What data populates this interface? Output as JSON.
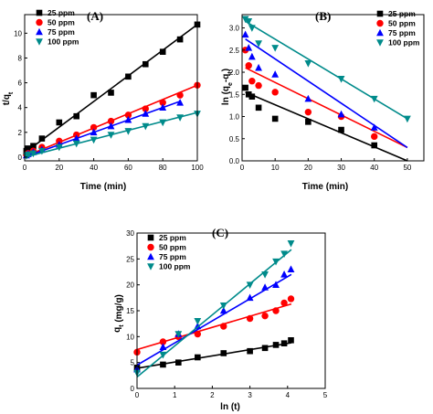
{
  "chart_data": [
    {
      "type": "scatter",
      "panel_label": "(A)",
      "xlabel": "Time (min)",
      "ylabel_main": "t/q",
      "ylabel_sub": "t",
      "xlim": [
        0,
        100
      ],
      "ylim": [
        -0.3,
        11.5
      ],
      "xticks": [
        "0",
        "20",
        "40",
        "60",
        "80",
        "100"
      ],
      "yticks": [
        "0",
        "2",
        "4",
        "6",
        "8",
        "10"
      ],
      "legend": "top-left",
      "series": [
        {
          "name": "25 ppm",
          "color": "#000000",
          "marker": "square",
          "x": [
            1,
            2,
            5,
            10,
            20,
            30,
            40,
            50,
            60,
            70,
            80,
            90,
            100
          ],
          "y": [
            0.5,
            0.7,
            0.9,
            1.5,
            2.8,
            3.3,
            5.0,
            5.2,
            6.5,
            7.5,
            8.5,
            9.5,
            10.7
          ],
          "fit": [
            [
              0,
              0.35
            ],
            [
              100,
              10.7
            ]
          ]
        },
        {
          "name": "50 ppm",
          "color": "#ff0000",
          "marker": "circle",
          "x": [
            1,
            2,
            5,
            10,
            20,
            30,
            40,
            50,
            60,
            70,
            80,
            90,
            100
          ],
          "y": [
            0.2,
            0.3,
            0.5,
            0.8,
            1.3,
            1.8,
            2.4,
            2.9,
            3.4,
            3.9,
            4.4,
            5.0,
            5.8
          ],
          "fit": [
            [
              0,
              0.05
            ],
            [
              100,
              5.8
            ]
          ]
        },
        {
          "name": "75 ppm",
          "color": "#0000ff",
          "marker": "triangle-up",
          "x": [
            1,
            2,
            5,
            10,
            20,
            30,
            40,
            50,
            60,
            70,
            80,
            90
          ],
          "y": [
            0.15,
            0.25,
            0.4,
            0.6,
            1.0,
            1.5,
            2.0,
            2.5,
            3.0,
            3.5,
            4.0,
            4.4
          ],
          "fit": [
            [
              0,
              0.0
            ],
            [
              90,
              4.5
            ]
          ]
        },
        {
          "name": "100 ppm",
          "color": "#008b8b",
          "marker": "triangle-down",
          "x": [
            1,
            2,
            5,
            10,
            20,
            30,
            40,
            50,
            60,
            70,
            80,
            90,
            100
          ],
          "y": [
            0.1,
            0.2,
            0.3,
            0.5,
            0.8,
            1.1,
            1.4,
            1.8,
            2.1,
            2.5,
            2.8,
            3.2,
            3.5
          ],
          "fit": [
            [
              0,
              0.0
            ],
            [
              100,
              3.6
            ]
          ]
        }
      ]
    },
    {
      "type": "scatter",
      "panel_label": "(B)",
      "xlabel": "Time (min)",
      "ylabel_main": "ln (q",
      "ylabel_sub1": "e",
      "ylabel_mid": "-q",
      "ylabel_sub2": "t",
      "ylabel_end": ")",
      "xlim": [
        0,
        55
      ],
      "ylim": [
        0,
        3.3
      ],
      "xticks": [
        "0",
        "10",
        "20",
        "30",
        "40",
        "50"
      ],
      "yticks": [
        "0.0",
        "0.5",
        "1.0",
        "1.5",
        "2.0",
        "2.5",
        "3.0"
      ],
      "legend": "top-right",
      "series": [
        {
          "name": "25 ppm",
          "color": "#000000",
          "marker": "square",
          "x": [
            1,
            2,
            3,
            5,
            10,
            20,
            30,
            40
          ],
          "y": [
            1.65,
            1.5,
            1.45,
            1.2,
            0.95,
            0.88,
            0.7,
            0.35
          ],
          "fit": [
            [
              1,
              1.55
            ],
            [
              50,
              0.0
            ]
          ]
        },
        {
          "name": "50 ppm",
          "color": "#ff0000",
          "marker": "circle",
          "x": [
            1,
            2,
            3,
            5,
            10,
            20,
            30,
            40
          ],
          "y": [
            2.5,
            2.15,
            1.8,
            1.7,
            1.55,
            1.1,
            1.0,
            0.55
          ],
          "fit": [
            [
              1,
              2.1
            ],
            [
              50,
              0.3
            ]
          ]
        },
        {
          "name": "75 ppm",
          "color": "#0000ff",
          "marker": "triangle-up",
          "x": [
            1,
            2,
            3,
            5,
            10,
            20,
            30,
            40
          ],
          "y": [
            2.85,
            2.55,
            2.35,
            2.1,
            1.95,
            1.4,
            1.05,
            0.75
          ],
          "fit": [
            [
              1,
              2.75
            ],
            [
              50,
              0.3
            ]
          ]
        },
        {
          "name": "100 ppm",
          "color": "#008b8b",
          "marker": "triangle-down",
          "x": [
            1,
            2,
            3,
            5,
            10,
            20,
            30,
            40,
            50
          ],
          "y": [
            3.2,
            3.15,
            3.0,
            2.65,
            2.55,
            2.2,
            1.85,
            1.4,
            0.95
          ],
          "fit": [
            [
              1,
              3.15
            ],
            [
              50,
              0.95
            ]
          ]
        }
      ]
    },
    {
      "type": "scatter",
      "panel_label": "(C)",
      "xlabel": "ln (t)",
      "ylabel_main": "q",
      "ylabel_sub": "t",
      "ylabel_end": " (mg/g)",
      "xlim": [
        0,
        5
      ],
      "ylim": [
        0,
        30
      ],
      "xticks": [
        "0",
        "1",
        "2",
        "3",
        "4",
        "5"
      ],
      "yticks": [
        "0",
        "5",
        "10",
        "15",
        "20",
        "25",
        "30"
      ],
      "legend": "top-left",
      "series": [
        {
          "name": "25 ppm",
          "color": "#000000",
          "marker": "square",
          "x": [
            0,
            0.69,
            1.1,
            1.61,
            2.3,
            3.0,
            3.4,
            3.69,
            3.91,
            4.09
          ],
          "y": [
            4.0,
            4.6,
            5.0,
            6.0,
            6.8,
            7.2,
            7.8,
            8.4,
            8.7,
            9.3
          ],
          "fit": [
            [
              0,
              3.9
            ],
            [
              4.1,
              8.8
            ]
          ]
        },
        {
          "name": "50 ppm",
          "color": "#ff0000",
          "marker": "circle",
          "x": [
            0,
            0.69,
            1.1,
            1.61,
            2.3,
            3.0,
            3.4,
            3.69,
            3.91,
            4.09
          ],
          "y": [
            7.0,
            9.0,
            10.0,
            10.5,
            12.0,
            13.5,
            14.0,
            15.0,
            16.5,
            17.3
          ],
          "fit": [
            [
              0,
              7.5
            ],
            [
              4.1,
              16.3
            ]
          ]
        },
        {
          "name": "75 ppm",
          "color": "#0000ff",
          "marker": "triangle-up",
          "x": [
            0,
            0.69,
            1.1,
            1.61,
            2.3,
            3.0,
            3.4,
            3.69,
            3.91,
            4.09
          ],
          "y": [
            3.7,
            8.0,
            10.5,
            12.0,
            15.0,
            17.5,
            19.5,
            20.0,
            22.0,
            23.0
          ],
          "fit": [
            [
              0,
              4.5
            ],
            [
              4.1,
              22.0
            ]
          ]
        },
        {
          "name": "100 ppm",
          "color": "#008b8b",
          "marker": "triangle-down",
          "x": [
            0,
            0.69,
            1.1,
            1.61,
            2.3,
            3.0,
            3.4,
            3.69,
            3.91,
            4.09
          ],
          "y": [
            3.0,
            6.5,
            10.5,
            13.0,
            16.0,
            20.0,
            22.0,
            24.5,
            26.0,
            28.0
          ],
          "fit": [
            [
              0,
              2.2
            ],
            [
              4.1,
              26.8
            ]
          ]
        }
      ]
    }
  ]
}
